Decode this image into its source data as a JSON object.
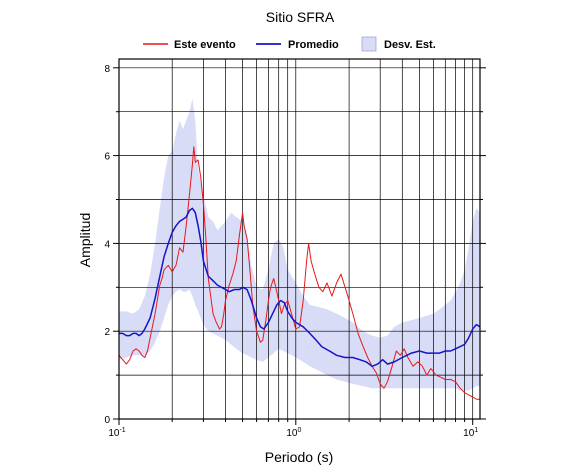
{
  "chart_data": {
    "type": "line",
    "title": "Sitio SFRA",
    "xlabel": "Periodo (s)",
    "ylabel": "Amplitud",
    "xscale": "log",
    "xlim": [
      0.1,
      11
    ],
    "ylim": [
      0,
      8.2
    ],
    "x_tick_labels": [
      {
        "base": "10",
        "exp": "-1",
        "value": 0.1
      },
      {
        "base": "10",
        "exp": "0",
        "value": 1
      },
      {
        "base": "10",
        "exp": "1",
        "value": 10
      }
    ],
    "y_ticks": [
      0,
      2,
      4,
      6,
      8
    ],
    "grid": true,
    "legend_position": "top",
    "colors": {
      "event": "#e8191a",
      "mean": "#1515c8",
      "band": "#d9dcf7",
      "grid": "#000000"
    },
    "series": [
      {
        "name": "Este evento",
        "color": "#e8191a",
        "points": [
          [
            0.1,
            1.45
          ],
          [
            0.105,
            1.35
          ],
          [
            0.11,
            1.25
          ],
          [
            0.115,
            1.35
          ],
          [
            0.12,
            1.55
          ],
          [
            0.125,
            1.6
          ],
          [
            0.13,
            1.55
          ],
          [
            0.135,
            1.45
          ],
          [
            0.14,
            1.4
          ],
          [
            0.145,
            1.55
          ],
          [
            0.15,
            1.85
          ],
          [
            0.16,
            2.4
          ],
          [
            0.17,
            3.05
          ],
          [
            0.175,
            3.2
          ],
          [
            0.18,
            3.4
          ],
          [
            0.19,
            3.5
          ],
          [
            0.2,
            3.35
          ],
          [
            0.21,
            3.5
          ],
          [
            0.22,
            3.9
          ],
          [
            0.23,
            3.8
          ],
          [
            0.24,
            4.4
          ],
          [
            0.25,
            5.1
          ],
          [
            0.26,
            5.8
          ],
          [
            0.265,
            6.2
          ],
          [
            0.27,
            5.85
          ],
          [
            0.28,
            5.9
          ],
          [
            0.29,
            5.5
          ],
          [
            0.3,
            4.9
          ],
          [
            0.31,
            4.1
          ],
          [
            0.32,
            3.2
          ],
          [
            0.33,
            2.8
          ],
          [
            0.34,
            2.4
          ],
          [
            0.355,
            2.2
          ],
          [
            0.37,
            2.05
          ],
          [
            0.38,
            2.1
          ],
          [
            0.39,
            2.35
          ],
          [
            0.4,
            2.7
          ],
          [
            0.42,
            3.05
          ],
          [
            0.44,
            3.3
          ],
          [
            0.46,
            3.6
          ],
          [
            0.48,
            4.2
          ],
          [
            0.5,
            4.7
          ],
          [
            0.51,
            4.4
          ],
          [
            0.53,
            4.1
          ],
          [
            0.55,
            3.4
          ],
          [
            0.57,
            2.6
          ],
          [
            0.6,
            2.0
          ],
          [
            0.63,
            1.75
          ],
          [
            0.65,
            1.8
          ],
          [
            0.68,
            2.3
          ],
          [
            0.7,
            2.7
          ],
          [
            0.72,
            3.0
          ],
          [
            0.75,
            3.2
          ],
          [
            0.78,
            2.9
          ],
          [
            0.8,
            2.7
          ],
          [
            0.83,
            2.4
          ],
          [
            0.86,
            2.6
          ],
          [
            0.9,
            2.7
          ],
          [
            0.93,
            2.5
          ],
          [
            0.96,
            2.3
          ],
          [
            1.0,
            2.05
          ],
          [
            1.05,
            2.1
          ],
          [
            1.1,
            2.7
          ],
          [
            1.15,
            3.6
          ],
          [
            1.18,
            4.0
          ],
          [
            1.22,
            3.6
          ],
          [
            1.28,
            3.3
          ],
          [
            1.35,
            3.0
          ],
          [
            1.42,
            2.9
          ],
          [
            1.5,
            3.1
          ],
          [
            1.6,
            2.8
          ],
          [
            1.7,
            3.1
          ],
          [
            1.8,
            3.3
          ],
          [
            1.9,
            3.0
          ],
          [
            2.0,
            2.7
          ],
          [
            2.1,
            2.4
          ],
          [
            2.25,
            1.95
          ],
          [
            2.4,
            1.65
          ],
          [
            2.55,
            1.4
          ],
          [
            2.7,
            1.2
          ],
          [
            2.85,
            1.05
          ],
          [
            3.0,
            0.8
          ],
          [
            3.15,
            0.7
          ],
          [
            3.3,
            0.85
          ],
          [
            3.5,
            1.2
          ],
          [
            3.7,
            1.55
          ],
          [
            3.9,
            1.45
          ],
          [
            4.1,
            1.6
          ],
          [
            4.3,
            1.4
          ],
          [
            4.6,
            1.2
          ],
          [
            4.9,
            1.3
          ],
          [
            5.2,
            1.2
          ],
          [
            5.5,
            1.0
          ],
          [
            5.8,
            1.15
          ],
          [
            6.2,
            1.0
          ],
          [
            6.6,
            0.95
          ],
          [
            7.0,
            0.9
          ],
          [
            7.5,
            0.9
          ],
          [
            8.0,
            0.85
          ],
          [
            8.5,
            0.7
          ],
          [
            9.0,
            0.6
          ],
          [
            9.5,
            0.55
          ],
          [
            10.0,
            0.5
          ],
          [
            10.5,
            0.45
          ],
          [
            11.0,
            0.45
          ]
        ]
      },
      {
        "name": "Promedio",
        "color": "#1515c8",
        "points": [
          [
            0.1,
            1.95
          ],
          [
            0.105,
            1.95
          ],
          [
            0.11,
            1.9
          ],
          [
            0.115,
            1.9
          ],
          [
            0.12,
            1.95
          ],
          [
            0.125,
            1.95
          ],
          [
            0.13,
            1.9
          ],
          [
            0.135,
            1.95
          ],
          [
            0.14,
            2.05
          ],
          [
            0.15,
            2.3
          ],
          [
            0.16,
            2.75
          ],
          [
            0.17,
            3.25
          ],
          [
            0.18,
            3.7
          ],
          [
            0.19,
            4.0
          ],
          [
            0.2,
            4.25
          ],
          [
            0.21,
            4.4
          ],
          [
            0.22,
            4.5
          ],
          [
            0.23,
            4.55
          ],
          [
            0.24,
            4.6
          ],
          [
            0.25,
            4.75
          ],
          [
            0.26,
            4.8
          ],
          [
            0.27,
            4.7
          ],
          [
            0.28,
            4.4
          ],
          [
            0.29,
            4.05
          ],
          [
            0.3,
            3.6
          ],
          [
            0.32,
            3.25
          ],
          [
            0.34,
            3.15
          ],
          [
            0.36,
            3.05
          ],
          [
            0.38,
            3.0
          ],
          [
            0.4,
            2.95
          ],
          [
            0.42,
            2.9
          ],
          [
            0.45,
            2.95
          ],
          [
            0.48,
            2.95
          ],
          [
            0.5,
            3.0
          ],
          [
            0.53,
            2.95
          ],
          [
            0.56,
            2.7
          ],
          [
            0.6,
            2.3
          ],
          [
            0.63,
            2.1
          ],
          [
            0.66,
            2.05
          ],
          [
            0.7,
            2.2
          ],
          [
            0.75,
            2.45
          ],
          [
            0.78,
            2.6
          ],
          [
            0.82,
            2.7
          ],
          [
            0.86,
            2.65
          ],
          [
            0.9,
            2.45
          ],
          [
            0.95,
            2.3
          ],
          [
            1.0,
            2.2
          ],
          [
            1.1,
            2.1
          ],
          [
            1.2,
            1.95
          ],
          [
            1.3,
            1.8
          ],
          [
            1.4,
            1.65
          ],
          [
            1.55,
            1.55
          ],
          [
            1.7,
            1.45
          ],
          [
            1.9,
            1.4
          ],
          [
            2.1,
            1.4
          ],
          [
            2.3,
            1.35
          ],
          [
            2.5,
            1.3
          ],
          [
            2.7,
            1.2
          ],
          [
            2.9,
            1.25
          ],
          [
            3.1,
            1.35
          ],
          [
            3.3,
            1.25
          ],
          [
            3.6,
            1.3
          ],
          [
            4.0,
            1.4
          ],
          [
            4.5,
            1.5
          ],
          [
            5.0,
            1.55
          ],
          [
            5.5,
            1.5
          ],
          [
            6.0,
            1.5
          ],
          [
            6.5,
            1.5
          ],
          [
            7.0,
            1.55
          ],
          [
            7.5,
            1.55
          ],
          [
            8.0,
            1.6
          ],
          [
            8.5,
            1.65
          ],
          [
            9.0,
            1.7
          ],
          [
            9.5,
            1.85
          ],
          [
            10.0,
            2.05
          ],
          [
            10.5,
            2.15
          ],
          [
            11.0,
            2.1
          ]
        ]
      },
      {
        "name": "Desv. Est.",
        "color": "#d9dcf7",
        "kind": "band",
        "upper": [
          [
            0.1,
            2.45
          ],
          [
            0.11,
            2.45
          ],
          [
            0.12,
            2.4
          ],
          [
            0.13,
            2.5
          ],
          [
            0.14,
            2.8
          ],
          [
            0.15,
            3.3
          ],
          [
            0.16,
            4.0
          ],
          [
            0.17,
            4.8
          ],
          [
            0.18,
            5.5
          ],
          [
            0.19,
            6.0
          ],
          [
            0.2,
            6.1
          ],
          [
            0.21,
            6.5
          ],
          [
            0.22,
            6.8
          ],
          [
            0.23,
            6.6
          ],
          [
            0.24,
            6.8
          ],
          [
            0.25,
            7.0
          ],
          [
            0.26,
            7.3
          ],
          [
            0.27,
            6.8
          ],
          [
            0.28,
            5.7
          ],
          [
            0.3,
            5.1
          ],
          [
            0.32,
            4.6
          ],
          [
            0.34,
            4.5
          ],
          [
            0.36,
            4.3
          ],
          [
            0.38,
            4.4
          ],
          [
            0.4,
            4.5
          ],
          [
            0.43,
            4.7
          ],
          [
            0.46,
            4.6
          ],
          [
            0.5,
            4.5
          ],
          [
            0.53,
            4.2
          ],
          [
            0.56,
            3.5
          ],
          [
            0.6,
            3.0
          ],
          [
            0.65,
            2.95
          ],
          [
            0.7,
            3.4
          ],
          [
            0.75,
            4.0
          ],
          [
            0.8,
            4.1
          ],
          [
            0.85,
            3.9
          ],
          [
            0.9,
            3.4
          ],
          [
            1.0,
            3.1
          ],
          [
            1.1,
            2.8
          ],
          [
            1.2,
            2.6
          ],
          [
            1.35,
            2.55
          ],
          [
            1.5,
            2.5
          ],
          [
            1.7,
            2.4
          ],
          [
            1.9,
            2.3
          ],
          [
            2.1,
            2.2
          ],
          [
            2.4,
            2.0
          ],
          [
            2.7,
            1.9
          ],
          [
            3.0,
            1.85
          ],
          [
            3.3,
            1.9
          ],
          [
            3.6,
            2.1
          ],
          [
            4.0,
            2.2
          ],
          [
            4.5,
            2.25
          ],
          [
            5.0,
            2.3
          ],
          [
            5.5,
            2.35
          ],
          [
            6.0,
            2.4
          ],
          [
            6.5,
            2.5
          ],
          [
            7.0,
            2.6
          ],
          [
            7.5,
            2.7
          ],
          [
            8.0,
            2.9
          ],
          [
            8.5,
            3.1
          ],
          [
            9.0,
            3.4
          ],
          [
            9.5,
            3.9
          ],
          [
            10.0,
            4.5
          ],
          [
            10.5,
            4.8
          ],
          [
            11.0,
            4.7
          ]
        ],
        "lower": [
          [
            0.1,
            1.35
          ],
          [
            0.11,
            1.4
          ],
          [
            0.12,
            1.45
          ],
          [
            0.13,
            1.45
          ],
          [
            0.14,
            1.45
          ],
          [
            0.15,
            1.55
          ],
          [
            0.16,
            1.75
          ],
          [
            0.17,
            2.0
          ],
          [
            0.18,
            2.3
          ],
          [
            0.19,
            2.6
          ],
          [
            0.2,
            2.8
          ],
          [
            0.21,
            2.9
          ],
          [
            0.22,
            2.95
          ],
          [
            0.23,
            2.9
          ],
          [
            0.24,
            2.9
          ],
          [
            0.25,
            2.95
          ],
          [
            0.26,
            2.8
          ],
          [
            0.27,
            2.6
          ],
          [
            0.28,
            2.45
          ],
          [
            0.3,
            2.15
          ],
          [
            0.32,
            2.0
          ],
          [
            0.34,
            1.95
          ],
          [
            0.36,
            1.9
          ],
          [
            0.38,
            1.85
          ],
          [
            0.4,
            1.8
          ],
          [
            0.43,
            1.7
          ],
          [
            0.46,
            1.6
          ],
          [
            0.5,
            1.5
          ],
          [
            0.53,
            1.45
          ],
          [
            0.56,
            1.4
          ],
          [
            0.6,
            1.35
          ],
          [
            0.65,
            1.3
          ],
          [
            0.7,
            1.4
          ],
          [
            0.75,
            1.5
          ],
          [
            0.8,
            1.6
          ],
          [
            0.85,
            1.55
          ],
          [
            0.9,
            1.5
          ],
          [
            1.0,
            1.4
          ],
          [
            1.1,
            1.3
          ],
          [
            1.2,
            1.2
          ],
          [
            1.35,
            1.1
          ],
          [
            1.5,
            1.0
          ],
          [
            1.7,
            0.9
          ],
          [
            1.9,
            0.85
          ],
          [
            2.1,
            0.8
          ],
          [
            2.4,
            0.75
          ],
          [
            2.7,
            0.7
          ],
          [
            3.0,
            0.7
          ],
          [
            3.3,
            0.7
          ],
          [
            3.6,
            0.7
          ],
          [
            4.0,
            0.7
          ],
          [
            4.5,
            0.7
          ],
          [
            5.0,
            0.7
          ],
          [
            5.5,
            0.7
          ],
          [
            6.0,
            0.7
          ],
          [
            6.5,
            0.7
          ],
          [
            7.0,
            0.7
          ],
          [
            7.5,
            0.7
          ],
          [
            8.0,
            0.7
          ],
          [
            8.5,
            0.65
          ],
          [
            9.0,
            0.65
          ],
          [
            9.5,
            0.65
          ],
          [
            10.0,
            0.7
          ],
          [
            10.5,
            0.75
          ],
          [
            11.0,
            0.75
          ]
        ]
      }
    ]
  }
}
